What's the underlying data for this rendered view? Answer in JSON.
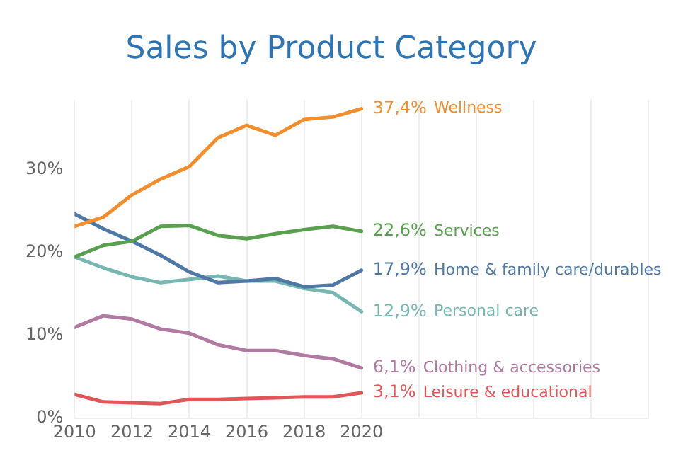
{
  "chart_data": {
    "type": "line",
    "title": "Sales by Product Category",
    "x": [
      2010,
      2011,
      2012,
      2013,
      2014,
      2015,
      2016,
      2017,
      2018,
      2019,
      2020
    ],
    "series": [
      {
        "name": "Wellness",
        "color": "#f28e2b",
        "values": [
          23.2,
          24.3,
          27.0,
          28.9,
          30.4,
          33.9,
          35.4,
          34.2,
          36.1,
          36.4,
          37.4
        ],
        "value_labels": [
          null,
          null,
          null,
          null,
          null,
          null,
          null,
          null,
          null,
          null,
          "37,4%"
        ]
      },
      {
        "name": "Services",
        "color": "#59a14f",
        "values": [
          19.5,
          20.9,
          21.4,
          23.2,
          23.3,
          22.1,
          21.7,
          22.3,
          22.8,
          23.2,
          22.6
        ],
        "value_labels": [
          null,
          null,
          null,
          null,
          null,
          null,
          null,
          null,
          null,
          null,
          "22,6%"
        ]
      },
      {
        "name": "Home & family care/durables",
        "color": "#4e79a7",
        "values": [
          24.7,
          22.9,
          21.4,
          19.7,
          17.7,
          16.4,
          16.6,
          16.9,
          15.9,
          16.1,
          17.9
        ],
        "value_labels": [
          null,
          null,
          null,
          null,
          null,
          null,
          null,
          null,
          null,
          null,
          "17,9%"
        ]
      },
      {
        "name": "Personal care",
        "color": "#76b7b2",
        "values": [
          19.5,
          18.2,
          17.1,
          16.4,
          16.8,
          17.2,
          16.6,
          16.6,
          15.7,
          15.2,
          12.9
        ],
        "value_labels": [
          null,
          null,
          null,
          null,
          null,
          null,
          null,
          null,
          null,
          null,
          "12,9%"
        ]
      },
      {
        "name": "Clothing & accessories",
        "color": "#b07aa1",
        "values": [
          11.0,
          12.4,
          12.0,
          10.8,
          10.3,
          8.9,
          8.2,
          8.2,
          7.6,
          7.2,
          6.1
        ],
        "value_labels": [
          null,
          null,
          null,
          null,
          null,
          null,
          null,
          null,
          null,
          null,
          "6,1%"
        ]
      },
      {
        "name": "Leisure & educational",
        "color": "#e15759",
        "values": [
          2.9,
          2.0,
          1.9,
          1.8,
          2.3,
          2.3,
          2.4,
          2.5,
          2.6,
          2.6,
          3.1
        ],
        "value_labels": [
          null,
          null,
          null,
          null,
          null,
          null,
          null,
          null,
          null,
          null,
          "3,1%"
        ]
      }
    ],
    "xlim": [
      2010,
      2030
    ],
    "xticks": [
      2010,
      2012,
      2014,
      2016,
      2018,
      2020,
      {
        "value": 2022,
        "label": null
      },
      {
        "value": 2024,
        "label": null
      },
      {
        "value": 2026,
        "label": null
      },
      {
        "value": 2028,
        "label": null
      },
      {
        "value": 2030,
        "label": null
      }
    ],
    "ylim": [
      0,
      38.5
    ],
    "yticks": [
      {
        "value": 0,
        "label": "0%"
      },
      {
        "value": 10,
        "label": "10%"
      },
      {
        "value": 20,
        "label": "20%"
      },
      {
        "value": 30,
        "label": "30%"
      }
    ],
    "grid": "x",
    "legend": false,
    "marker": "none",
    "line_style": "solid"
  }
}
